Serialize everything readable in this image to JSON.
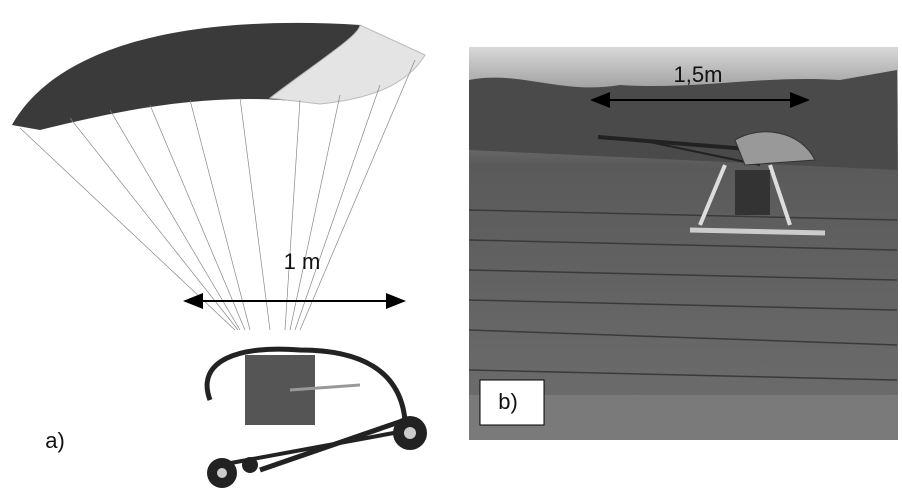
{
  "panels": [
    {
      "label": "a)",
      "dimension": "1 m"
    },
    {
      "label": "b)",
      "dimension": "1,5m"
    }
  ]
}
